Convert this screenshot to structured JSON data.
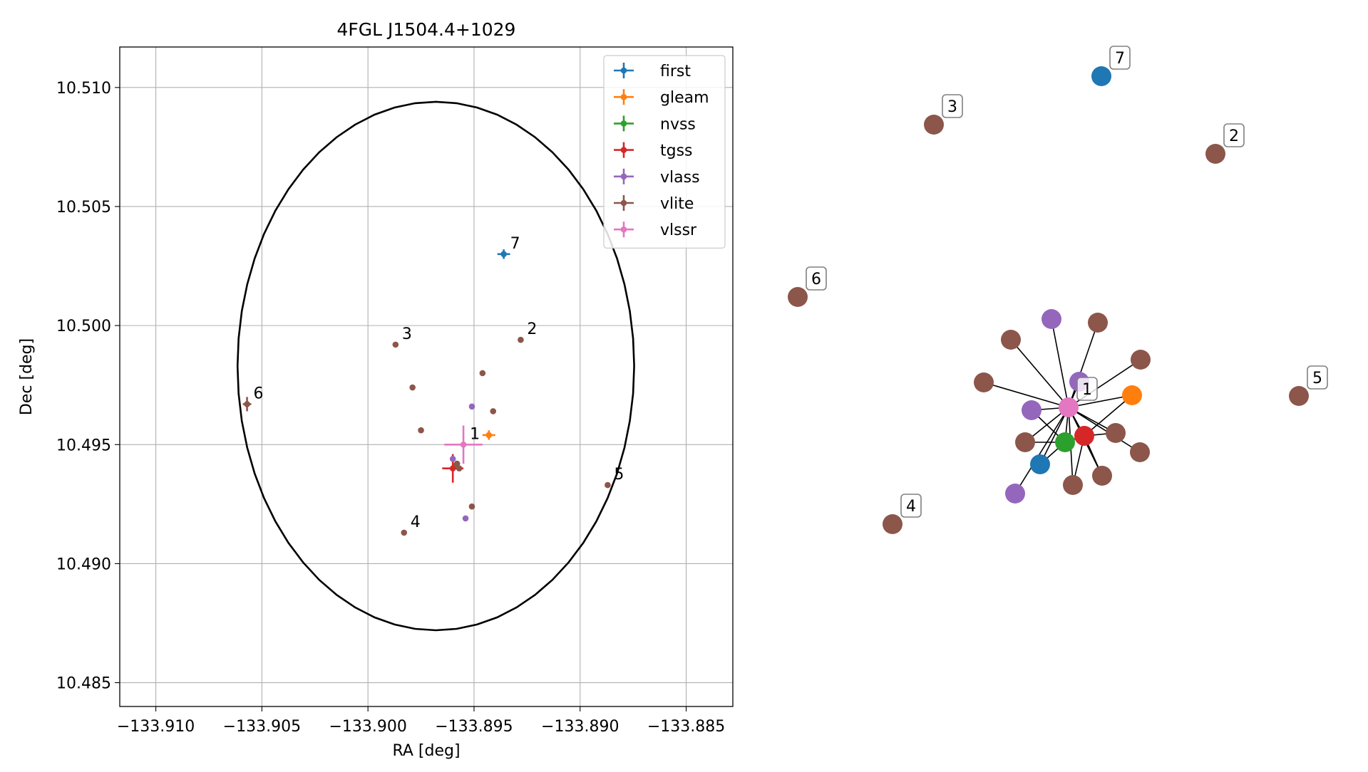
{
  "chart_data": [
    {
      "type": "scatter",
      "title": "4FGL J1504.4+1029",
      "xlabel": "RA [deg]",
      "ylabel": "Dec [deg]",
      "xlim": [
        -133.9117,
        -133.8828
      ],
      "ylim": [
        10.484,
        10.5117
      ],
      "x_ticks": [
        -133.91,
        -133.905,
        -133.9,
        -133.895,
        -133.89,
        -133.885
      ],
      "x_tick_labels": [
        "−133.910",
        "−133.905",
        "−133.900",
        "−133.895",
        "−133.890",
        "−133.885"
      ],
      "y_ticks": [
        10.485,
        10.49,
        10.495,
        10.5,
        10.505,
        10.51
      ],
      "y_tick_labels": [
        "10.485",
        "10.490",
        "10.495",
        "10.500",
        "10.505",
        "10.510"
      ],
      "grid": true,
      "legend_position": "top-right",
      "circle": {
        "center": [
          -133.8968,
          10.4983
        ],
        "radius_x": 0.00935,
        "radius_y": 0.0111,
        "color": "#000000"
      },
      "series": [
        {
          "name": "first",
          "color": "#1f77b4",
          "points": [
            {
              "x": -133.8936,
              "y": 10.503,
              "xerr": 0.0003,
              "yerr": 0.0002,
              "label": "7"
            }
          ]
        },
        {
          "name": "gleam",
          "color": "#ff7f0e",
          "points": [
            {
              "x": -133.8943,
              "y": 10.4954,
              "xerr": 0.0003,
              "yerr": 0.0002
            }
          ]
        },
        {
          "name": "nvss",
          "color": "#2ca02c",
          "points": [
            {
              "x": -133.8959,
              "y": 10.4941,
              "xerr": 0.0001,
              "yerr": 0.0001
            }
          ]
        },
        {
          "name": "tgss",
          "color": "#d62728",
          "points": [
            {
              "x": -133.896,
              "y": 10.494,
              "xerr": 0.0005,
              "yerr": 0.0006
            }
          ]
        },
        {
          "name": "vlass",
          "color": "#9467bd",
          "points": [
            {
              "x": -133.8951,
              "y": 10.4966
            },
            {
              "x": -133.896,
              "y": 10.4944
            },
            {
              "x": -133.8954,
              "y": 10.4919
            }
          ]
        },
        {
          "name": "vlite",
          "color": "#8c564b",
          "points": [
            {
              "x": -133.8928,
              "y": 10.4994,
              "label": "2"
            },
            {
              "x": -133.8987,
              "y": 10.4992,
              "label": "3"
            },
            {
              "x": -133.8983,
              "y": 10.4913,
              "xerr": 0.0001,
              "yerr": 0.0001,
              "label": "4"
            },
            {
              "x": -133.8887,
              "y": 10.4933,
              "label": "5"
            },
            {
              "x": -133.9057,
              "y": 10.4967,
              "xerr": 0.0002,
              "yerr": 0.0003,
              "label": "6"
            },
            {
              "x": -133.8946,
              "y": 10.498
            },
            {
              "x": -133.8941,
              "y": 10.4964
            },
            {
              "x": -133.8979,
              "y": 10.4974
            },
            {
              "x": -133.8975,
              "y": 10.4956
            },
            {
              "x": -133.8958,
              "y": 10.4942
            },
            {
              "x": -133.8957,
              "y": 10.494
            },
            {
              "x": -133.8951,
              "y": 10.4924
            }
          ]
        },
        {
          "name": "vlssr",
          "color": "#e377c2",
          "points": [
            {
              "x": -133.8955,
              "y": 10.495,
              "xerr": 0.0009,
              "yerr": 0.0008,
              "label": "1"
            }
          ]
        }
      ]
    },
    {
      "type": "network",
      "title": "",
      "hub": {
        "color": "#e377c2",
        "label": "1"
      },
      "nodes": [
        {
          "color": "#1f77b4",
          "label": "7",
          "linked": false
        },
        {
          "color": "#8c564b",
          "label": "3",
          "linked": false
        },
        {
          "color": "#8c564b",
          "label": "2",
          "linked": false
        },
        {
          "color": "#8c564b",
          "label": "6",
          "linked": false
        },
        {
          "color": "#8c564b",
          "label": "5",
          "linked": false
        },
        {
          "color": "#8c564b",
          "label": "4",
          "linked": false
        },
        {
          "color": "#9467bd",
          "label": "",
          "linked": true
        },
        {
          "color": "#8c564b",
          "label": "",
          "linked": true
        },
        {
          "color": "#8c564b",
          "label": "",
          "linked": true
        },
        {
          "color": "#8c564b",
          "label": "",
          "linked": true
        },
        {
          "color": "#8c564b",
          "label": "",
          "linked": true
        },
        {
          "color": "#9467bd",
          "label": "",
          "linked": true
        },
        {
          "color": "#ff7f0e",
          "label": "",
          "linked": true
        },
        {
          "color": "#9467bd",
          "label": "",
          "linked": true
        },
        {
          "color": "#8c564b",
          "label": "",
          "linked": true
        },
        {
          "color": "#8c564b",
          "label": "",
          "linked": true
        },
        {
          "color": "#8c564b",
          "label": "",
          "linked": true
        },
        {
          "color": "#2ca02c",
          "label": "",
          "linked": true
        },
        {
          "color": "#d62728",
          "label": "",
          "linked": true
        },
        {
          "color": "#1f77b4",
          "label": "",
          "linked": true
        },
        {
          "color": "#8c564b",
          "label": "",
          "linked": true
        },
        {
          "color": "#8c564b",
          "label": "",
          "linked": true
        },
        {
          "color": "#9467bd",
          "label": "",
          "linked": true
        }
      ]
    }
  ]
}
